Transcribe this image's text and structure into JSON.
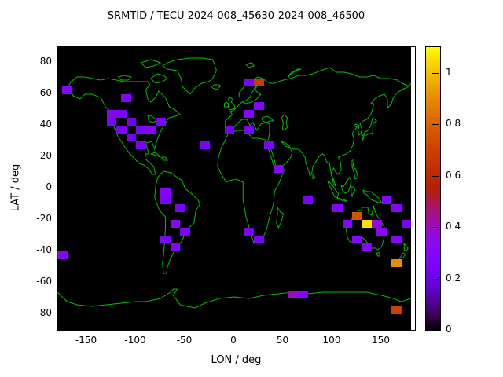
{
  "title": "SRMTID / TECU 2024-008_45630-2024-008_46500",
  "axes": {
    "xlabel": "LON / deg",
    "ylabel": "LAT / deg",
    "x_ticks": [
      -150,
      -100,
      -50,
      0,
      50,
      100,
      150
    ],
    "y_ticks": [
      80,
      60,
      40,
      20,
      0,
      -20,
      -40,
      -60,
      -80
    ],
    "xlim": [
      -180,
      180
    ],
    "ylim": [
      -90,
      90
    ]
  },
  "colorbar": {
    "ticks": [
      0,
      0.2,
      0.4,
      0.6,
      0.8,
      1
    ],
    "range": [
      0,
      1.1
    ]
  },
  "colors": {
    "coastline": "#00c000",
    "plot_background": "#000000",
    "page_background": "#ffffff",
    "text": "#000000"
  },
  "chart_data": {
    "type": "heatmap",
    "title": "SRMTID / TECU 2024-008_45630-2024-008_46500",
    "xlabel": "LON / deg",
    "ylabel": "LAT / deg",
    "xlim": [
      -180,
      180
    ],
    "ylim": [
      -90,
      90
    ],
    "grid": false,
    "legend_position": "colorbar-right",
    "basemap": "world coastlines, equirectangular projection, green on black",
    "palette": "gnuplot pm3d black-purple-red-orange-yellow",
    "cell_size_deg": {
      "lon": 10,
      "lat": 5
    },
    "colorbar_range": [
      0,
      1.1
    ],
    "colorbar_ticks": [
      0,
      0.2,
      0.4,
      0.6,
      0.8,
      1
    ],
    "points_format": [
      "lon_deg",
      "lat_deg",
      "value_tecu"
    ],
    "points": [
      [
        -170,
        62.5,
        0.3
      ],
      [
        25,
        67.5,
        0.68
      ],
      [
        15,
        67.5,
        0.25
      ],
      [
        -110,
        57.5,
        0.28
      ],
      [
        -125,
        47.5,
        0.3
      ],
      [
        -115,
        47.5,
        0.25
      ],
      [
        -125,
        42.5,
        0.25
      ],
      [
        -105,
        42.5,
        0.22
      ],
      [
        -115,
        37.5,
        0.25
      ],
      [
        -95,
        37.5,
        0.25
      ],
      [
        -85,
        37.5,
        0.3
      ],
      [
        -105,
        32.5,
        0.22
      ],
      [
        -95,
        27.5,
        0.25
      ],
      [
        -75,
        42.5,
        0.25
      ],
      [
        -30,
        27.5,
        0.25
      ],
      [
        -5,
        37.5,
        0.22
      ],
      [
        15,
        47.5,
        0.3
      ],
      [
        25,
        52.5,
        0.3
      ],
      [
        15,
        37.5,
        0.25
      ],
      [
        35,
        27.5,
        0.25
      ],
      [
        45,
        12.5,
        0.3
      ],
      [
        -70,
        -2.5,
        0.3
      ],
      [
        -70,
        -7.5,
        0.25
      ],
      [
        -55,
        -12.5,
        0.25
      ],
      [
        -60,
        -22.5,
        0.3
      ],
      [
        -50,
        -27.5,
        0.25
      ],
      [
        -70,
        -32.5,
        0.25
      ],
      [
        -60,
        -37.5,
        0.3
      ],
      [
        15,
        -27.5,
        0.25
      ],
      [
        25,
        -32.5,
        0.25
      ],
      [
        75,
        -7.5,
        0.25
      ],
      [
        105,
        -12.5,
        0.3
      ],
      [
        125,
        -17.5,
        0.75
      ],
      [
        115,
        -22.5,
        0.3
      ],
      [
        135,
        -22.5,
        1.05
      ],
      [
        145,
        -22.5,
        0.35
      ],
      [
        155,
        -7.5,
        0.28
      ],
      [
        165,
        -12.5,
        0.3
      ],
      [
        125,
        -32.5,
        0.3
      ],
      [
        135,
        -37.5,
        0.3
      ],
      [
        150,
        -27.5,
        0.32
      ],
      [
        165,
        -32.5,
        0.3
      ],
      [
        175,
        -22.5,
        0.25
      ],
      [
        165,
        -47.5,
        0.9
      ],
      [
        60,
        -67.5,
        0.4
      ],
      [
        70,
        -67.5,
        0.3
      ],
      [
        165,
        -77.5,
        0.7
      ],
      [
        -175,
        -42.5,
        0.3
      ]
    ]
  }
}
